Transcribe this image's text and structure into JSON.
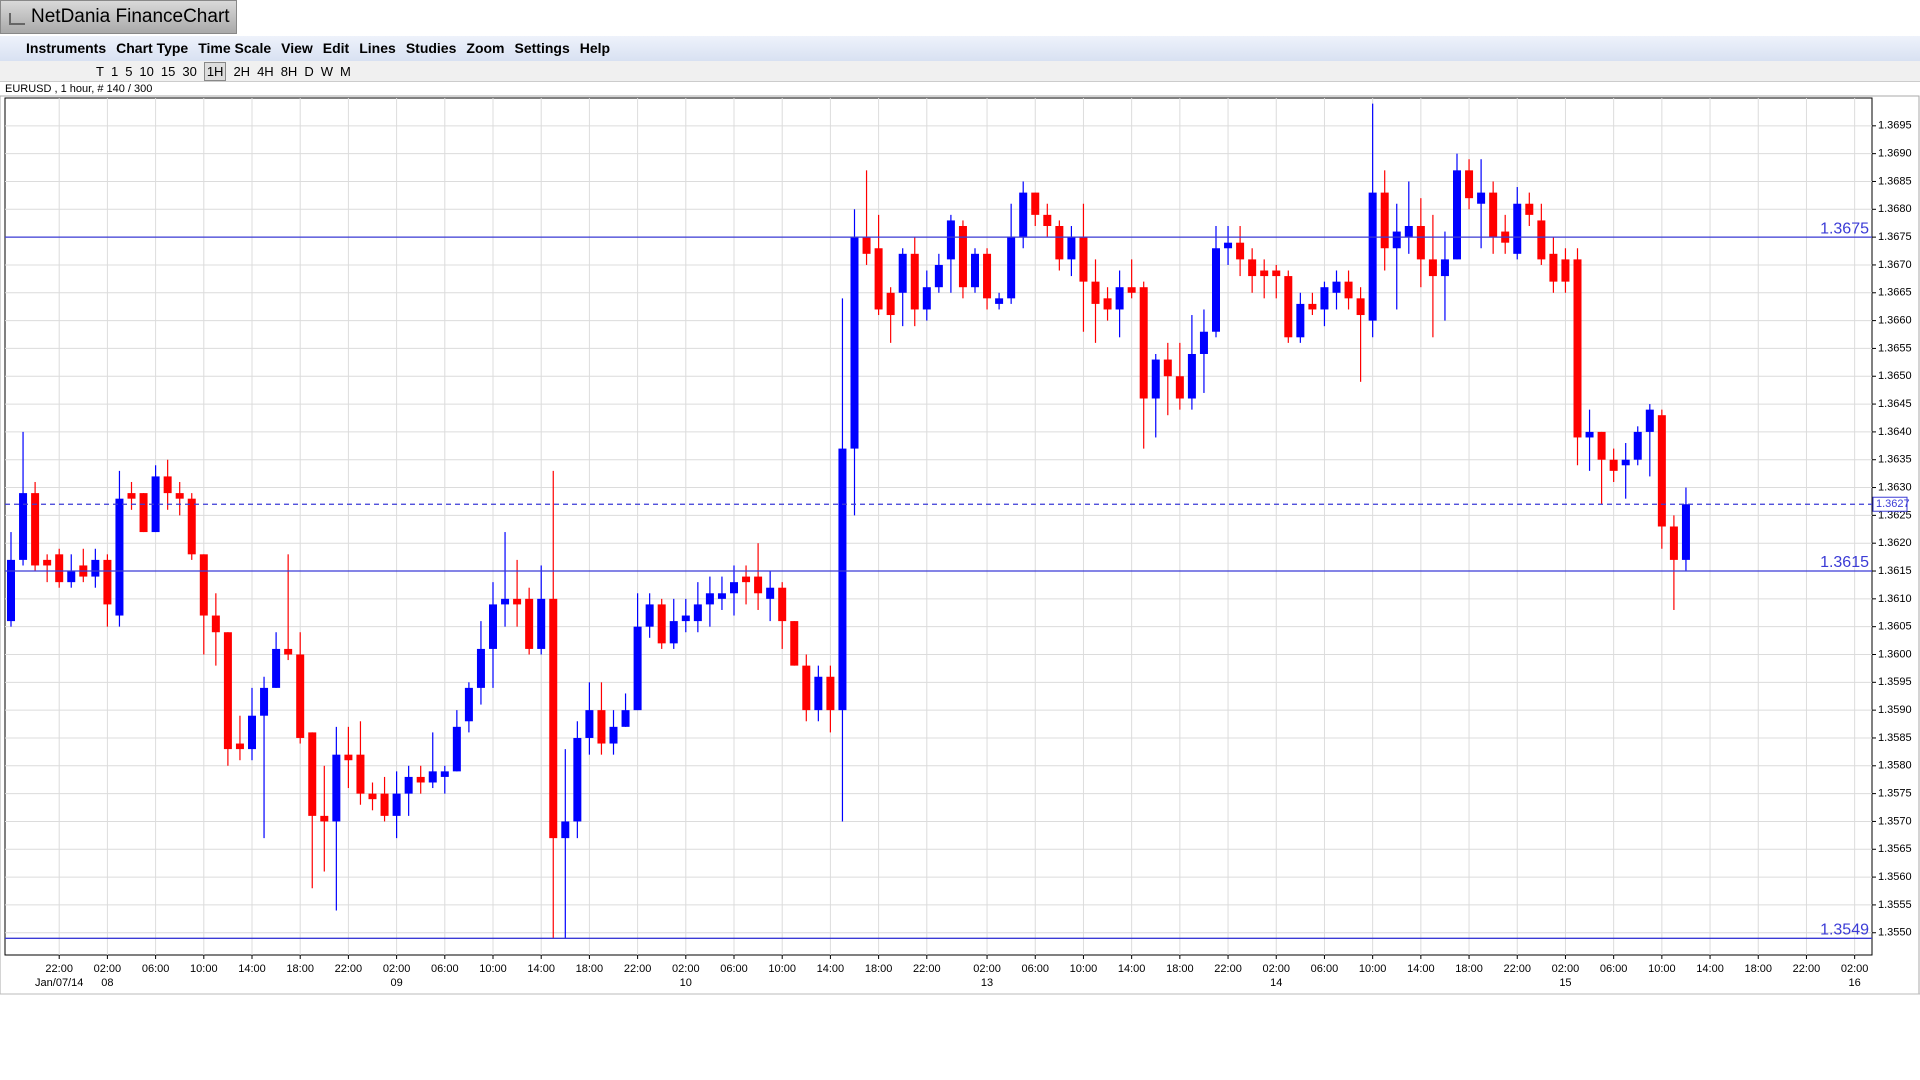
{
  "ui": {
    "app_title": "NetDania FinanceChart",
    "menu": [
      "Instruments",
      "Chart Type",
      "Time Scale",
      "View",
      "Edit",
      "Lines",
      "Studies",
      "Zoom",
      "Settings",
      "Help"
    ],
    "intervals": [
      "T",
      "1",
      "5",
      "10",
      "15",
      "30",
      "1H",
      "2H",
      "4H",
      "8H",
      "D",
      "W",
      "M"
    ],
    "active_interval": "1H",
    "symbol_info": "EURUSD , 1 hour, # 140 / 300"
  },
  "chart_data": {
    "type": "candlestick",
    "categories": [
      null,
      null,
      null,
      null,
      "22:00",
      null,
      null,
      null,
      "02:00",
      null,
      null,
      null,
      "06:00",
      null,
      null,
      null,
      "10:00",
      null,
      null,
      null,
      "14:00",
      null,
      null,
      null,
      "18:00",
      null,
      null,
      null,
      "22:00",
      null,
      null,
      null,
      "02:00",
      null,
      null,
      null,
      "06:00",
      null,
      null,
      null,
      "10:00",
      null,
      null,
      null,
      "14:00",
      null,
      null,
      null,
      "18:00",
      null,
      null,
      null,
      "22:00",
      null,
      null,
      null,
      "02:00",
      null,
      null,
      null,
      "06:00",
      null,
      null,
      null,
      "10:00",
      null,
      null,
      null,
      "14:00",
      null,
      null,
      null,
      "18:00",
      null,
      null,
      null,
      "22:00",
      null,
      null,
      null,
      null,
      "02:00",
      null,
      null,
      null,
      "06:00",
      null,
      null,
      null,
      "10:00",
      null,
      null,
      null,
      "14:00",
      null,
      null,
      null,
      "18:00",
      null,
      null,
      null,
      "22:00",
      null,
      null,
      null,
      "02:00",
      null,
      null,
      null,
      "06:00",
      null,
      null,
      null,
      "10:00",
      null,
      null,
      null,
      "14:00",
      null,
      null,
      null,
      "18:00",
      null,
      null,
      null,
      "22:00",
      null,
      null,
      null,
      "02:00",
      null,
      null,
      null,
      "06:00",
      null,
      null,
      null,
      "10:00",
      null,
      null,
      null,
      "14:00",
      null,
      null,
      null,
      "18:00",
      null,
      null,
      null,
      "22:00",
      null,
      null,
      null,
      "02:00"
    ],
    "dates": [
      null,
      null,
      null,
      null,
      "Jan/07/14",
      null,
      null,
      null,
      "08",
      null,
      null,
      null,
      null,
      null,
      null,
      null,
      null,
      null,
      null,
      null,
      null,
      null,
      null,
      null,
      null,
      null,
      null,
      null,
      null,
      null,
      null,
      null,
      "09",
      null,
      null,
      null,
      null,
      null,
      null,
      null,
      null,
      null,
      null,
      null,
      null,
      null,
      null,
      null,
      null,
      null,
      null,
      null,
      null,
      null,
      null,
      null,
      "10",
      null,
      null,
      null,
      null,
      null,
      null,
      null,
      null,
      null,
      null,
      null,
      null,
      null,
      null,
      null,
      null,
      null,
      null,
      null,
      null,
      null,
      null,
      null,
      null,
      "13",
      null,
      null,
      null,
      null,
      null,
      null,
      null,
      null,
      null,
      null,
      null,
      null,
      null,
      null,
      null,
      null,
      null,
      null,
      null,
      null,
      null,
      null,
      null,
      "14",
      null,
      null,
      null,
      null,
      null,
      null,
      null,
      null,
      null,
      null,
      null,
      null,
      null,
      null,
      null,
      null,
      null,
      null,
      null,
      null,
      null,
      null,
      null,
      "15",
      null,
      null,
      null,
      null,
      null,
      null,
      null,
      null,
      null,
      null,
      null,
      null,
      null,
      null,
      null,
      null,
      null,
      null,
      null,
      null,
      null,
      null,
      null,
      "16"
    ],
    "open": [
      1.3606,
      1.3617,
      1.3629,
      1.3617,
      1.3618,
      1.3613,
      1.3616,
      1.3614,
      1.3617,
      1.3607,
      1.3629,
      1.3629,
      1.3622,
      1.3632,
      1.3629,
      1.3628,
      1.3618,
      1.3607,
      1.3604,
      1.3584,
      1.3583,
      1.3589,
      1.3594,
      1.3601,
      1.36,
      1.3586,
      1.3571,
      1.357,
      1.3582,
      1.3582,
      1.3575,
      1.3575,
      1.3571,
      1.3575,
      1.3578,
      1.3577,
      1.3578,
      1.3579,
      1.3588,
      1.3594,
      1.3601,
      1.3609,
      1.361,
      1.361,
      1.3601,
      1.361,
      1.3567,
      1.357,
      1.3585,
      1.359,
      1.3584,
      1.3587,
      1.359,
      1.3605,
      1.3609,
      1.3602,
      1.3606,
      1.3606,
      1.3609,
      1.361,
      1.3611,
      1.3614,
      1.3614,
      1.361,
      1.3612,
      1.3606,
      1.3598,
      1.359,
      1.3596,
      1.359,
      1.3637,
      1.3675,
      1.3673,
      1.3665,
      1.3665,
      1.3672,
      1.3662,
      1.3666,
      1.3671,
      1.3677,
      1.3666,
      1.3672,
      1.3663,
      1.3664,
      1.3675,
      1.3683,
      1.3679,
      1.3677,
      1.3671,
      1.3675,
      1.3667,
      1.3664,
      1.3662,
      1.3666,
      1.3666,
      1.3646,
      1.3653,
      1.365,
      1.3646,
      1.3654,
      1.3658,
      1.3673,
      1.3674,
      1.3671,
      1.3669,
      1.3669,
      1.3668,
      1.3657,
      1.3663,
      1.3662,
      1.3665,
      1.3667,
      1.3664,
      1.366,
      1.3683,
      1.3673,
      1.3675,
      1.3677,
      1.3671,
      1.3668,
      1.3671,
      1.3687,
      1.3681,
      1.3683,
      1.3676,
      1.3672,
      1.3681,
      1.3678,
      1.3672,
      1.3671,
      1.3671,
      1.3639,
      1.364,
      1.3635,
      1.3634,
      1.3635,
      1.364,
      1.3643,
      1.3623,
      1.3617,
      null,
      null,
      null,
      null,
      null,
      null,
      null,
      null,
      null,
      null,
      null,
      null,
      null,
      null
    ],
    "high": [
      1.3622,
      1.364,
      1.3631,
      1.3618,
      1.3619,
      1.3618,
      1.3619,
      1.3619,
      1.3618,
      1.3633,
      1.3631,
      1.3629,
      1.3634,
      1.3635,
      1.3631,
      1.3629,
      1.3618,
      1.3611,
      1.3604,
      1.3589,
      1.3594,
      1.3596,
      1.3604,
      1.3618,
      1.3604,
      1.3586,
      1.358,
      1.3587,
      1.3587,
      1.3588,
      1.3577,
      1.3578,
      1.3579,
      1.358,
      1.358,
      1.3586,
      1.358,
      1.359,
      1.3595,
      1.3606,
      1.3613,
      1.3622,
      1.3617,
      1.3612,
      1.3616,
      1.3633,
      1.3583,
      1.3588,
      1.3595,
      1.3595,
      1.359,
      1.3593,
      1.3611,
      1.3611,
      1.361,
      1.361,
      1.361,
      1.3613,
      1.3614,
      1.3614,
      1.3616,
      1.3616,
      1.362,
      1.3615,
      1.3613,
      1.3606,
      1.36,
      1.3598,
      1.3598,
      1.3664,
      1.368,
      1.3687,
      1.3679,
      1.3666,
      1.3673,
      1.3675,
      1.3669,
      1.3672,
      1.3679,
      1.3678,
      1.3673,
      1.3673,
      1.3665,
      1.3681,
      1.3685,
      1.3683,
      1.3681,
      1.3678,
      1.3677,
      1.3681,
      1.3671,
      1.3666,
      1.3669,
      1.3671,
      1.3667,
      1.3654,
      1.3656,
      1.3656,
      1.3661,
      1.3662,
      1.3677,
      1.3677,
      1.3677,
      1.3673,
      1.3671,
      1.367,
      1.3669,
      1.3665,
      1.3665,
      1.3667,
      1.3669,
      1.3669,
      1.3666,
      1.3699,
      1.3687,
      1.3681,
      1.3685,
      1.3682,
      1.3679,
      1.3676,
      1.369,
      1.3689,
      1.3689,
      1.3685,
      1.3679,
      1.3684,
      1.3683,
      1.3681,
      1.3675,
      1.3673,
      1.3673,
      1.3644,
      1.364,
      1.3637,
      1.3638,
      1.3641,
      1.3645,
      1.3644,
      1.3625,
      1.363,
      null,
      null,
      null,
      null,
      null,
      null,
      null,
      null,
      null,
      null,
      null,
      null,
      null,
      null
    ],
    "low": [
      1.3605,
      1.3616,
      1.3615,
      1.3613,
      1.3612,
      1.3612,
      1.3613,
      1.3612,
      1.3605,
      1.3605,
      1.3626,
      1.3622,
      1.3622,
      1.3626,
      1.3625,
      1.3617,
      1.36,
      1.3598,
      1.358,
      1.3581,
      1.3581,
      1.3567,
      1.3594,
      1.3599,
      1.3584,
      1.3558,
      1.3561,
      1.3554,
      1.3576,
      1.3573,
      1.3572,
      1.357,
      1.3567,
      1.3571,
      1.3575,
      1.3576,
      1.3575,
      1.3579,
      1.3586,
      1.3591,
      1.3594,
      1.3605,
      1.3605,
      1.36,
      1.36,
      1.3549,
      1.3549,
      1.3567,
      1.3582,
      1.3582,
      1.3582,
      1.3587,
      1.359,
      1.3603,
      1.3601,
      1.3601,
      1.3604,
      1.3604,
      1.3605,
      1.3608,
      1.3607,
      1.3609,
      1.3608,
      1.3606,
      1.3601,
      1.3598,
      1.3588,
      1.3588,
      1.3586,
      1.357,
      1.3625,
      1.367,
      1.3661,
      1.3656,
      1.3659,
      1.3659,
      1.366,
      1.3665,
      1.3665,
      1.3664,
      1.3665,
      1.3662,
      1.3662,
      1.3663,
      1.3673,
      1.3677,
      1.3675,
      1.3669,
      1.3668,
      1.3658,
      1.3656,
      1.366,
      1.3657,
      1.3664,
      1.3637,
      1.3639,
      1.3643,
      1.3644,
      1.3644,
      1.3647,
      1.3657,
      1.367,
      1.3668,
      1.3665,
      1.3664,
      1.3664,
      1.3656,
      1.3656,
      1.3661,
      1.3659,
      1.3662,
      1.3662,
      1.3649,
      1.3657,
      1.3669,
      1.3662,
      1.3672,
      1.3666,
      1.3657,
      1.366,
      1.3671,
      1.368,
      1.3673,
      1.3672,
      1.3672,
      1.3671,
      1.3677,
      1.367,
      1.3665,
      1.3665,
      1.3634,
      1.3633,
      1.3627,
      1.3631,
      1.3628,
      1.3634,
      1.3632,
      1.3619,
      1.3608,
      1.3615,
      null,
      null,
      null,
      null,
      null,
      null,
      null,
      null,
      null,
      null,
      null,
      null,
      null,
      null
    ],
    "close": [
      1.3617,
      1.3629,
      1.3616,
      1.3616,
      1.3613,
      1.3615,
      1.3614,
      1.3617,
      1.3609,
      1.3628,
      1.3628,
      1.3622,
      1.3632,
      1.3629,
      1.3628,
      1.3618,
      1.3607,
      1.3604,
      1.3583,
      1.3583,
      1.3589,
      1.3594,
      1.3601,
      1.36,
      1.3585,
      1.3571,
      1.357,
      1.3582,
      1.3581,
      1.3575,
      1.3574,
      1.3571,
      1.3575,
      1.3578,
      1.3577,
      1.3579,
      1.3579,
      1.3587,
      1.3594,
      1.3601,
      1.3609,
      1.361,
      1.3609,
      1.3601,
      1.361,
      1.3567,
      1.357,
      1.3585,
      1.359,
      1.3584,
      1.3587,
      1.359,
      1.3605,
      1.3609,
      1.3602,
      1.3606,
      1.3607,
      1.3609,
      1.3611,
      1.3611,
      1.3613,
      1.3613,
      1.3611,
      1.3612,
      1.3606,
      1.3598,
      1.359,
      1.3596,
      1.359,
      1.3637,
      1.3675,
      1.3672,
      1.3662,
      1.3661,
      1.3672,
      1.3662,
      1.3666,
      1.367,
      1.3678,
      1.3666,
      1.3672,
      1.3664,
      1.3664,
      1.3675,
      1.3683,
      1.3679,
      1.3677,
      1.3671,
      1.3675,
      1.3667,
      1.3663,
      1.3662,
      1.3666,
      1.3665,
      1.3646,
      1.3653,
      1.365,
      1.3646,
      1.3654,
      1.3658,
      1.3673,
      1.3674,
      1.3671,
      1.3668,
      1.3668,
      1.3668,
      1.3657,
      1.3663,
      1.3662,
      1.3666,
      1.3667,
      1.3664,
      1.3661,
      1.3683,
      1.3673,
      1.3676,
      1.3677,
      1.3671,
      1.3668,
      1.3671,
      1.3687,
      1.3682,
      1.3683,
      1.3675,
      1.3674,
      1.3681,
      1.3679,
      1.3671,
      1.3667,
      1.3667,
      1.3639,
      1.364,
      1.3635,
      1.3633,
      1.3635,
      1.364,
      1.3644,
      1.3623,
      1.3617,
      1.3627,
      null,
      null,
      null,
      null,
      null,
      null,
      null,
      null,
      null,
      null,
      null,
      null,
      null,
      null
    ],
    "up_color": "#0000ff",
    "down_color": "#ff0000",
    "ylim": [
      1.3546,
      1.37
    ],
    "yticks": [
      {
        "value": 1.355,
        "label": "1.3550"
      },
      {
        "value": 1.3555,
        "label": "1.3555"
      },
      {
        "value": 1.356,
        "label": "1.3560"
      },
      {
        "value": 1.3565,
        "label": "1.3565"
      },
      {
        "value": 1.357,
        "label": "1.3570"
      },
      {
        "value": 1.3575,
        "label": "1.3575"
      },
      {
        "value": 1.358,
        "label": "1.3580"
      },
      {
        "value": 1.3585,
        "label": "1.3585"
      },
      {
        "value": 1.359,
        "label": "1.3590"
      },
      {
        "value": 1.3595,
        "label": "1.3595"
      },
      {
        "value": 1.36,
        "label": "1.3600"
      },
      {
        "value": 1.3605,
        "label": "1.3605"
      },
      {
        "value": 1.361,
        "label": "1.3610"
      },
      {
        "value": 1.3615,
        "label": "1.3615"
      },
      {
        "value": 1.362,
        "label": "1.3620"
      },
      {
        "value": 1.3625,
        "label": "1.3625"
      },
      {
        "value": 1.363,
        "label": "1.3630"
      },
      {
        "value": 1.3635,
        "label": "1.3635"
      },
      {
        "value": 1.364,
        "label": "1.3640"
      },
      {
        "value": 1.3645,
        "label": "1.3645"
      },
      {
        "value": 1.365,
        "label": "1.3650"
      },
      {
        "value": 1.3655,
        "label": "1.3655"
      },
      {
        "value": 1.366,
        "label": "1.3660"
      },
      {
        "value": 1.3665,
        "label": "1.3665"
      },
      {
        "value": 1.367,
        "label": "1.3670"
      },
      {
        "value": 1.3675,
        "label": "1.3675"
      },
      {
        "value": 1.368,
        "label": "1.3680"
      },
      {
        "value": 1.3685,
        "label": "1.3685"
      },
      {
        "value": 1.369,
        "label": "1.3690"
      },
      {
        "value": 1.3695,
        "label": "1.3695"
      }
    ],
    "grid": true,
    "levels": [
      1.3675,
      1.3615,
      1.3549
    ],
    "level_color": "#3b3bd6",
    "last_price": 1.3627
  }
}
